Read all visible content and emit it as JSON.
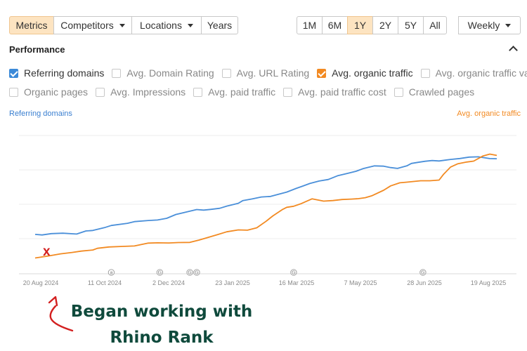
{
  "toolbar": {
    "tabs": [
      {
        "label": "Metrics",
        "active": true,
        "dropdown": false
      },
      {
        "label": "Competitors",
        "active": false,
        "dropdown": true
      },
      {
        "label": "Locations",
        "active": false,
        "dropdown": true
      },
      {
        "label": "Years",
        "active": false,
        "dropdown": false
      }
    ],
    "ranges": [
      {
        "label": "1M",
        "active": false
      },
      {
        "label": "6M",
        "active": false
      },
      {
        "label": "1Y",
        "active": true
      },
      {
        "label": "2Y",
        "active": false
      },
      {
        "label": "5Y",
        "active": false
      },
      {
        "label": "All",
        "active": false
      }
    ],
    "interval": "Weekly"
  },
  "section_title": "Performance",
  "checkboxes": {
    "row1": [
      {
        "label": "Referring domains",
        "checked": true,
        "color": "#3c8ad8"
      },
      {
        "label": "Avg. Domain Rating",
        "checked": false
      },
      {
        "label": "Avg. URL Rating",
        "checked": false
      },
      {
        "label": "Avg. organic traffic",
        "checked": true,
        "color": "#f28a22"
      },
      {
        "label": "Avg. organic traffic value",
        "checked": false
      }
    ],
    "row2": [
      {
        "label": "Organic pages",
        "checked": false
      },
      {
        "label": "Avg. Impressions",
        "checked": false
      },
      {
        "label": "Avg. paid traffic",
        "checked": false
      },
      {
        "label": "Avg. paid traffic cost",
        "checked": false
      },
      {
        "label": "Crawled pages",
        "checked": false
      }
    ]
  },
  "annotation": {
    "marker": "x",
    "caption_line1": "Began working with",
    "caption_line2": "Rhino Rank"
  },
  "chart_data": {
    "type": "line",
    "left_axis_label": "Referring domains",
    "right_axis_label": "Avg. organic traffic",
    "x_ticks": [
      "20 Aug 2024",
      "11 Oct 2024",
      "2 Dec 2024",
      "23 Jan 2025",
      "16 Mar 2025",
      "7 May 2025",
      "28 Jun 2025",
      "19 Aug 2025"
    ],
    "event_markers": [
      {
        "label": "a",
        "x": 0.165
      },
      {
        "label": "G",
        "x": 0.27
      },
      {
        "label": "G",
        "x": 0.335
      },
      {
        "label": "G",
        "x": 0.35
      },
      {
        "label": "G",
        "x": 0.56
      },
      {
        "label": "G",
        "x": 0.84
      }
    ],
    "grid": true,
    "y_range": [
      0,
      1
    ],
    "series": [
      {
        "name": "Referring domains",
        "color": "#4a8fd9",
        "x": [
          0,
          0.015,
          0.035,
          0.06,
          0.09,
          0.11,
          0.125,
          0.15,
          0.165,
          0.2,
          0.215,
          0.245,
          0.265,
          0.285,
          0.305,
          0.33,
          0.35,
          0.365,
          0.38,
          0.4,
          0.415,
          0.44,
          0.45,
          0.47,
          0.49,
          0.51,
          0.525,
          0.545,
          0.565,
          0.58,
          0.595,
          0.615,
          0.635,
          0.655,
          0.675,
          0.695,
          0.71,
          0.735,
          0.755,
          0.77,
          0.785,
          0.805,
          0.815,
          0.83,
          0.845,
          0.86,
          0.875,
          0.9,
          0.92,
          0.94,
          0.96,
          0.985,
          1.0
        ],
        "values": [
          0.286,
          0.282,
          0.292,
          0.295,
          0.289,
          0.311,
          0.315,
          0.335,
          0.351,
          0.367,
          0.379,
          0.387,
          0.391,
          0.403,
          0.431,
          0.451,
          0.467,
          0.463,
          0.468,
          0.476,
          0.492,
          0.512,
          0.532,
          0.544,
          0.558,
          0.562,
          0.576,
          0.594,
          0.62,
          0.638,
          0.656,
          0.674,
          0.685,
          0.712,
          0.728,
          0.745,
          0.764,
          0.784,
          0.782,
          0.772,
          0.766,
          0.784,
          0.802,
          0.81,
          0.818,
          0.823,
          0.82,
          0.831,
          0.838,
          0.848,
          0.85,
          0.837,
          0.836
        ]
      },
      {
        "name": "Avg. organic traffic",
        "color": "#f28a22",
        "x": [
          0,
          0.03,
          0.055,
          0.08,
          0.1,
          0.125,
          0.135,
          0.16,
          0.19,
          0.215,
          0.245,
          0.265,
          0.29,
          0.31,
          0.335,
          0.355,
          0.375,
          0.395,
          0.415,
          0.44,
          0.46,
          0.48,
          0.5,
          0.515,
          0.535,
          0.545,
          0.56,
          0.575,
          0.6,
          0.625,
          0.645,
          0.665,
          0.685,
          0.7,
          0.715,
          0.73,
          0.755,
          0.77,
          0.79,
          0.805,
          0.835,
          0.855,
          0.875,
          0.885,
          0.9,
          0.915,
          0.935,
          0.95,
          0.97,
          0.985,
          1.0
        ],
        "values": [
          0.115,
          0.13,
          0.145,
          0.155,
          0.165,
          0.173,
          0.185,
          0.195,
          0.199,
          0.202,
          0.223,
          0.225,
          0.224,
          0.227,
          0.228,
          0.245,
          0.265,
          0.284,
          0.305,
          0.319,
          0.317,
          0.334,
          0.381,
          0.421,
          0.466,
          0.483,
          0.491,
          0.508,
          0.545,
          0.528,
          0.532,
          0.54,
          0.543,
          0.546,
          0.553,
          0.568,
          0.607,
          0.639,
          0.661,
          0.666,
          0.676,
          0.676,
          0.681,
          0.724,
          0.776,
          0.799,
          0.812,
          0.819,
          0.856,
          0.87,
          0.86
        ]
      }
    ]
  }
}
